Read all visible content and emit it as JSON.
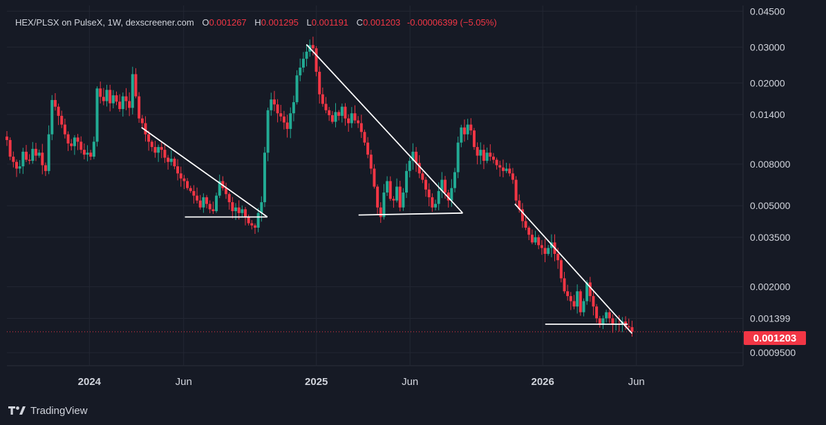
{
  "header": {
    "symbol": "HEX/PLSX on PulseX, 1W, dexscreener.com",
    "o_label": "O",
    "o_value": "0.001267",
    "h_label": "H",
    "h_value": "0.001295",
    "l_label": "L",
    "l_value": "0.001191",
    "c_label": "C",
    "c_value": "0.001203",
    "change": "-0.00006399 (−5.05%)"
  },
  "footer": {
    "brand": "TradingView"
  },
  "colors": {
    "bg": "#161a25",
    "up": "#22ab94",
    "down": "#f23645",
    "grid": "#232733",
    "text": "#d1d4dc",
    "trendline": "#ffffff"
  },
  "chart_data": {
    "type": "candlestick",
    "interval": "1W",
    "y_scale": "log",
    "ylim": [
      0.00082,
      0.048
    ],
    "y_ticks": [
      "0.04500",
      "0.03000",
      "0.02000",
      "0.01400",
      "0.008000",
      "0.005000",
      "0.003500",
      "0.002000",
      "0.001399",
      "0.0009500"
    ],
    "x_ticks": [
      "2024",
      "Jun",
      "2025",
      "Jun",
      "2026",
      "Jun"
    ],
    "x_tick_dates": [
      "2024-01-01",
      "2024-06-01",
      "2025-01-01",
      "2025-06-01",
      "2026-01-01",
      "2026-06-01"
    ],
    "x_range": [
      "2023-08-21",
      "2026-11-20"
    ],
    "last_price": "0.001203",
    "closes": [
      0.0105,
      0.0087,
      0.0082,
      0.0076,
      0.0078,
      0.0092,
      0.0084,
      0.0083,
      0.0095,
      0.0088,
      0.0091,
      0.0079,
      0.0074,
      0.0112,
      0.0165,
      0.0153,
      0.0138,
      0.0125,
      0.0112,
      0.0101,
      0.0098,
      0.0108,
      0.0103,
      0.0094,
      0.0089,
      0.0091,
      0.0087,
      0.0103,
      0.0188,
      0.0171,
      0.0163,
      0.0185,
      0.0159,
      0.0174,
      0.0162,
      0.0149,
      0.0172,
      0.0163,
      0.0151,
      0.0221,
      0.0172,
      0.0134,
      0.0127,
      0.0112,
      0.0103,
      0.0097,
      0.0091,
      0.0097,
      0.0094,
      0.0086,
      0.0082,
      0.0085,
      0.0078,
      0.0072,
      0.0068,
      0.0066,
      0.0061,
      0.0059,
      0.0056,
      0.0053,
      0.0049,
      0.0055,
      0.0051,
      0.0048,
      0.0047,
      0.0056,
      0.0066,
      0.0061,
      0.0057,
      0.0052,
      0.0047,
      0.0049,
      0.0046,
      0.0048,
      0.0044,
      0.0041,
      0.004,
      0.0039,
      0.0046,
      0.0052,
      0.0091,
      0.0147,
      0.0166,
      0.0157,
      0.0142,
      0.0137,
      0.0128,
      0.0119,
      0.0142,
      0.0161,
      0.0218,
      0.0238,
      0.0263,
      0.0285,
      0.0307,
      0.0296,
      0.0227,
      0.0176,
      0.0158,
      0.0147,
      0.0139,
      0.0129,
      0.0144,
      0.0138,
      0.0153,
      0.0134,
      0.0127,
      0.0142,
      0.0131,
      0.0127,
      0.0115,
      0.0102,
      0.0089,
      0.0076,
      0.0062,
      0.0049,
      0.0044,
      0.0058,
      0.0066,
      0.0054,
      0.0053,
      0.0062,
      0.0049,
      0.0058,
      0.0074,
      0.0083,
      0.0092,
      0.0081,
      0.0072,
      0.0067,
      0.006,
      0.0055,
      0.0049,
      0.0051,
      0.0059,
      0.0067,
      0.0058,
      0.0053,
      0.0061,
      0.0073,
      0.0102,
      0.0121,
      0.0112,
      0.0125,
      0.0117,
      0.0097,
      0.0088,
      0.0094,
      0.0083,
      0.0091,
      0.0087,
      0.0084,
      0.0079,
      0.0077,
      0.0074,
      0.0076,
      0.0072,
      0.0067,
      0.0053,
      0.0048,
      0.0042,
      0.0039,
      0.0036,
      0.0033,
      0.0035,
      0.0032,
      0.0031,
      0.0029,
      0.0031,
      0.0033,
      0.0029,
      0.0027,
      0.0022,
      0.0019,
      0.0018,
      0.0017,
      0.0016,
      0.0019,
      0.0015,
      0.0017,
      0.0021,
      0.0018,
      0.0016,
      0.0014,
      0.0013,
      0.0014,
      0.0015,
      0.0014,
      0.0013,
      0.00132,
      0.0013,
      0.00135,
      0.00128,
      0.001267,
      0.001203
    ],
    "patterns": [
      {
        "type": "descending-triangle",
        "resistance": [
          [
            "2024-03-25",
            0.0121
          ],
          [
            "2024-10-14",
            0.0044
          ]
        ],
        "support": [
          [
            "2024-06-03",
            0.0044
          ],
          [
            "2024-10-14",
            0.0044
          ]
        ]
      },
      {
        "type": "descending-triangle",
        "resistance": [
          [
            "2024-12-16",
            0.0309
          ],
          [
            "2025-08-25",
            0.0046
          ]
        ],
        "support": [
          [
            "2025-03-10",
            0.0045
          ],
          [
            "2025-08-25",
            0.0046
          ]
        ]
      },
      {
        "type": "descending-triangle",
        "resistance": [
          [
            "2025-11-17",
            0.0051
          ],
          [
            "2026-05-25",
            0.00118
          ]
        ],
        "support": [
          [
            "2026-01-05",
            0.00131
          ],
          [
            "2026-05-18",
            0.00131
          ]
        ]
      }
    ]
  }
}
